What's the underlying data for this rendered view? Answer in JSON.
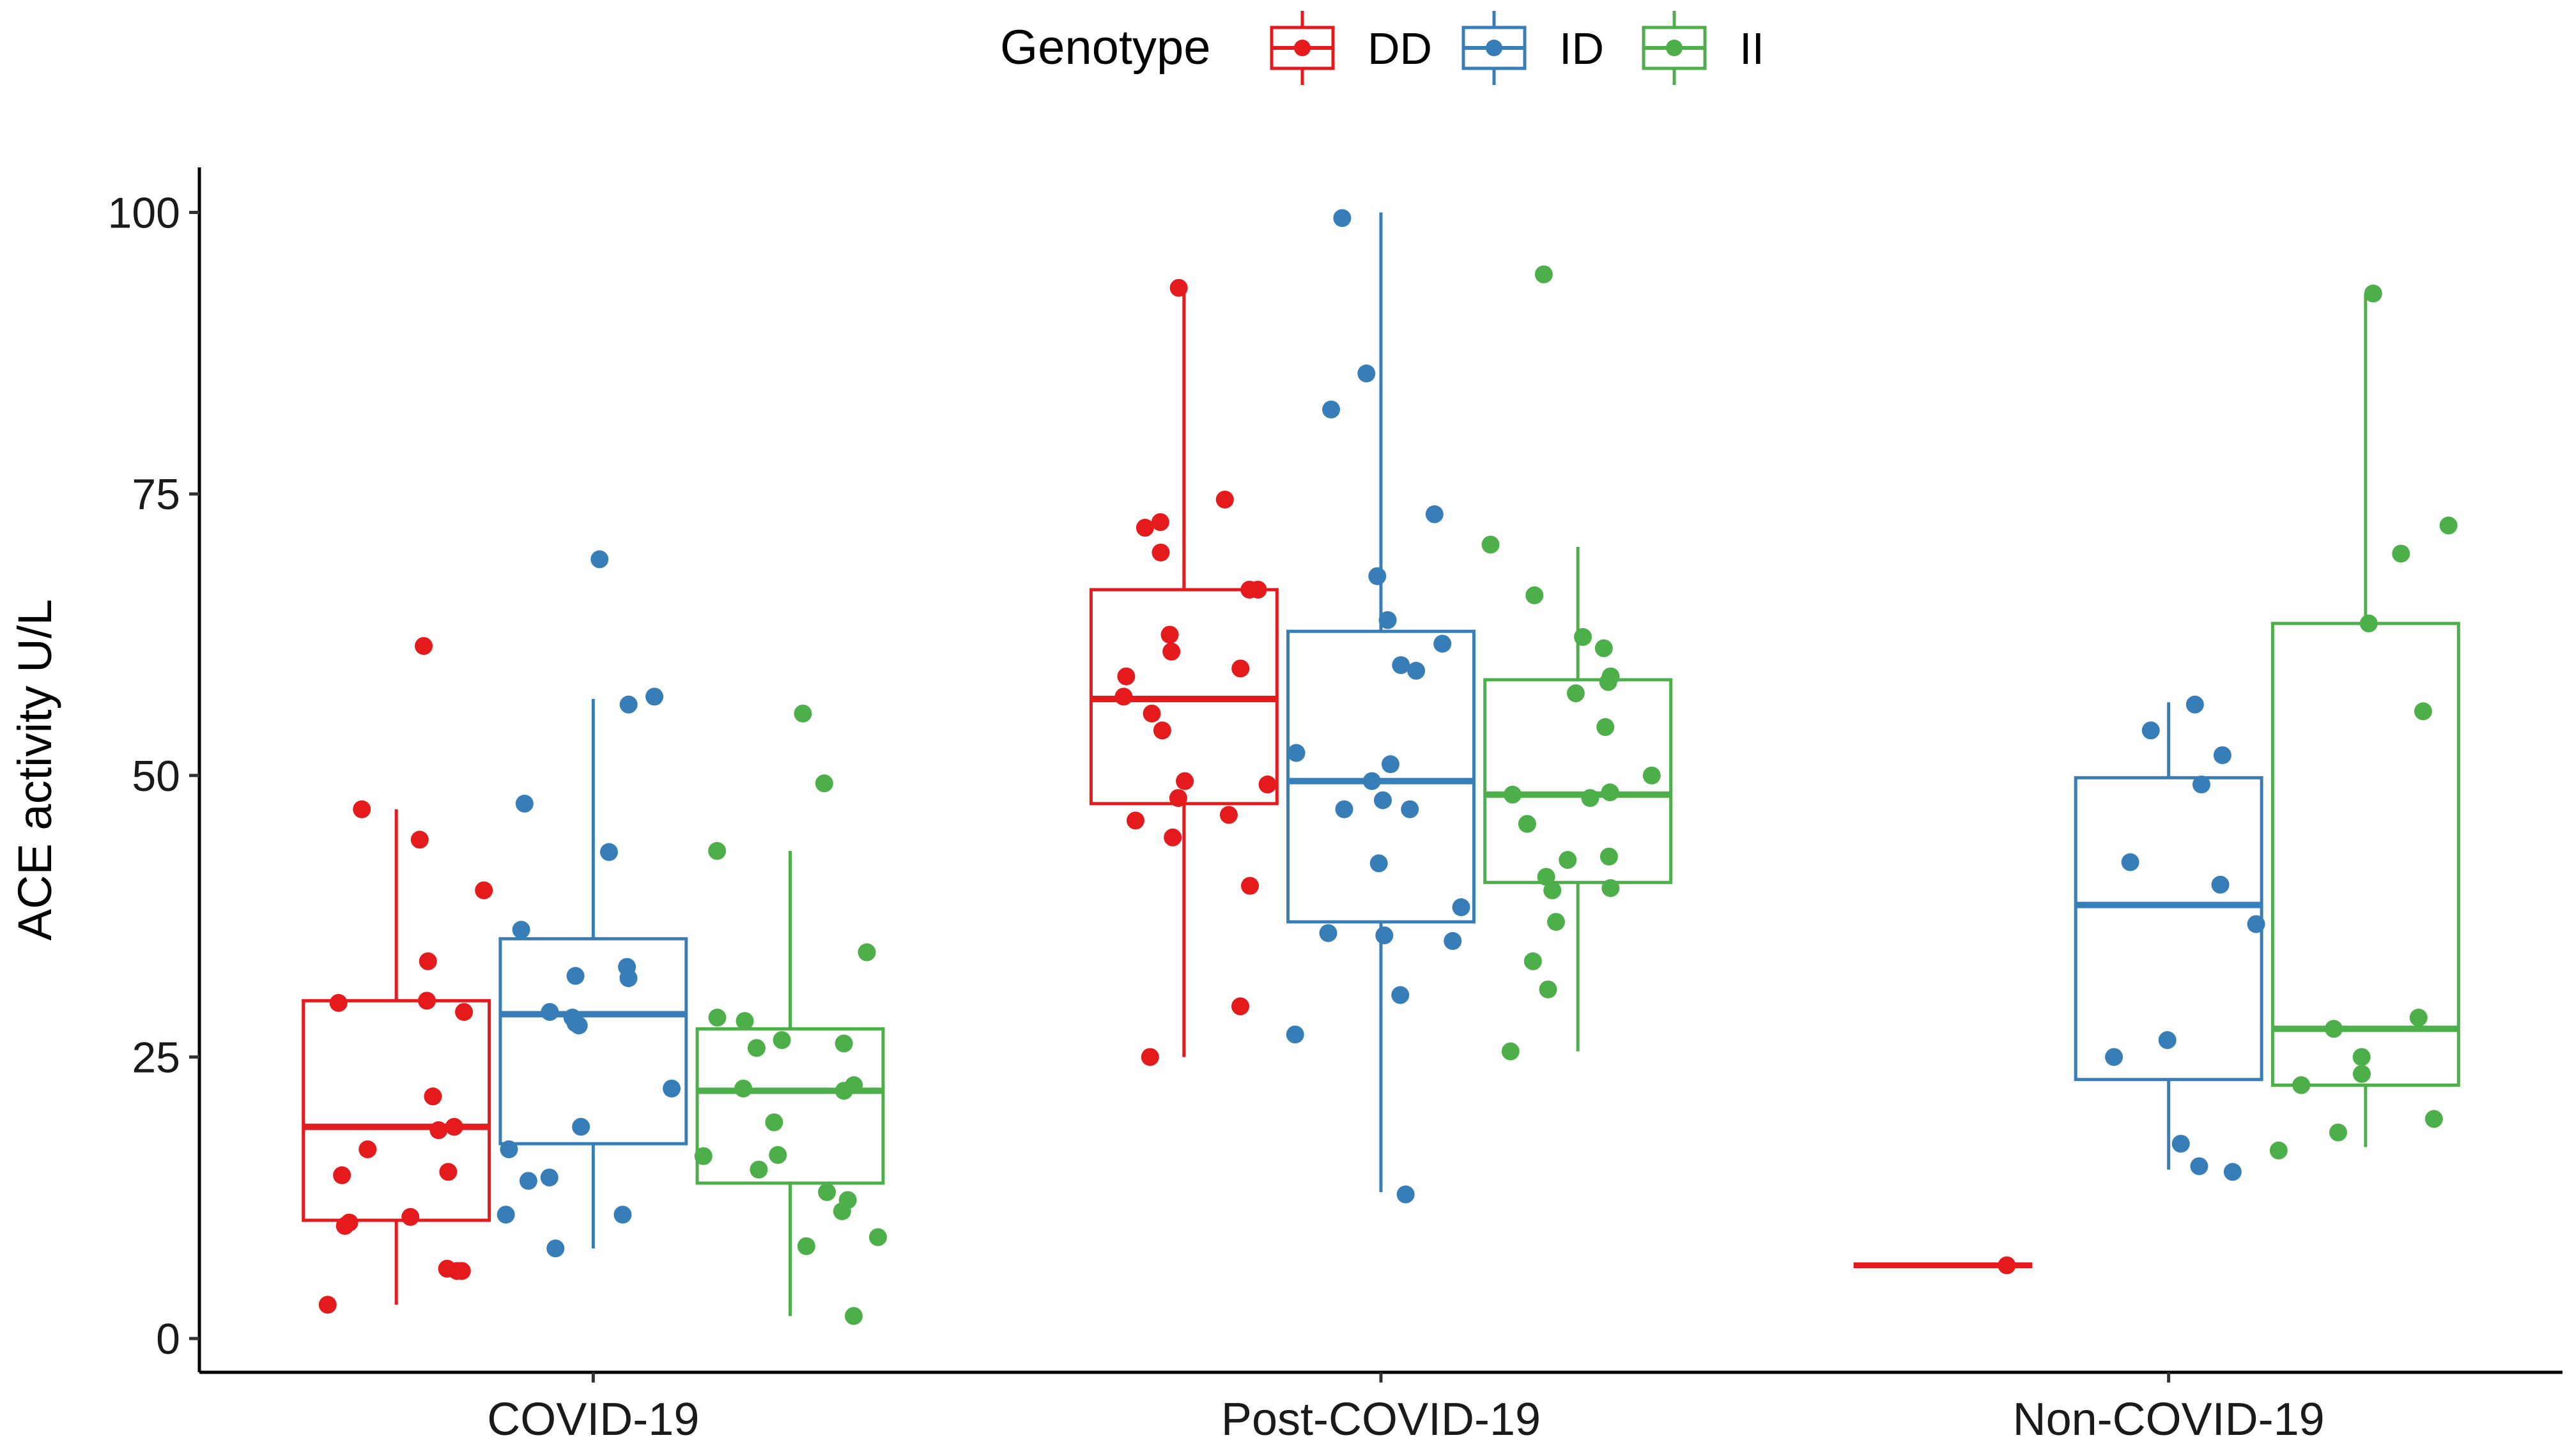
{
  "chart_data": {
    "type": "boxplot",
    "title": "",
    "xlabel": "",
    "ylabel": "ACE activity U/L",
    "ylim": [
      -3,
      104
    ],
    "yticks": [
      0,
      25,
      50,
      75,
      100
    ],
    "categories": [
      "COVID-19",
      "Post-COVID-19",
      "Non-COVID-19"
    ],
    "legend": {
      "title": "Genotype",
      "position": "top",
      "entries": [
        {
          "name": "DD",
          "color": "#E41A1C"
        },
        {
          "name": "ID",
          "color": "#377EB8"
        },
        {
          "name": "II",
          "color": "#4DAF4A"
        }
      ]
    },
    "series": [
      {
        "name": "DD",
        "color": "#E41A1C",
        "boxes": [
          {
            "category": "COVID-19",
            "min": 3,
            "q1": 10.5,
            "median": 18.8,
            "q3": 30,
            "max": 47,
            "points": [
              61.5,
              47,
              44.3,
              39.8,
              33.5,
              30,
              29.8,
              29,
              21.5,
              18.8,
              18.5,
              16.8,
              14.8,
              14.5,
              10.8,
              10.3,
              10,
              6.2,
              6,
              6,
              3
            ]
          },
          {
            "category": "Post-COVID-19",
            "min": 25,
            "q1": 47.5,
            "median": 56.8,
            "q3": 66.5,
            "max": 93,
            "points": [
              93.3,
              74.5,
              72.5,
              72,
              69.8,
              66.5,
              66.5,
              62.5,
              61,
              59.5,
              58.8,
              57,
              55.5,
              54,
              49.5,
              49.2,
              48,
              46.5,
              46,
              44.5,
              40.2,
              29.5,
              25
            ]
          },
          {
            "category": "Non-COVID-19",
            "min": 6.5,
            "q1": 6.5,
            "median": 6.5,
            "q3": 6.5,
            "max": 6.5,
            "points": [
              6.5
            ]
          }
        ]
      },
      {
        "name": "ID",
        "color": "#377EB8",
        "boxes": [
          {
            "category": "COVID-19",
            "min": 8,
            "q1": 17.3,
            "median": 28.8,
            "q3": 35.5,
            "max": 56.8,
            "points": [
              69.2,
              57,
              56.3,
              47.5,
              43.2,
              36.3,
              33,
              32.2,
              32,
              29,
              28.5,
              28,
              27.8,
              22.2,
              18.8,
              16.8,
              14.3,
              14,
              11,
              11,
              8
            ]
          },
          {
            "category": "Post-COVID-19",
            "min": 13,
            "q1": 37,
            "median": 49.5,
            "q3": 62.8,
            "max": 100,
            "points": [
              99.5,
              85.7,
              82.5,
              73.2,
              67.7,
              63.8,
              61.7,
              59.8,
              59.3,
              52,
              51,
              49.5,
              47.8,
              47,
              47,
              42.2,
              38.3,
              36,
              35.8,
              35.3,
              30.5,
              27,
              12.8
            ]
          },
          {
            "category": "Non-COVID-19",
            "min": 15,
            "q1": 23,
            "median": 38.5,
            "q3": 49.8,
            "max": 56.5,
            "points": [
              56.3,
              54,
              51.8,
              49.2,
              42.3,
              40.3,
              36.8,
              26.5,
              25,
              17.3,
              15.3,
              14.8
            ]
          }
        ]
      },
      {
        "name": "II",
        "color": "#4DAF4A",
        "boxes": [
          {
            "category": "COVID-19",
            "min": 2,
            "q1": 13.8,
            "median": 22,
            "q3": 27.5,
            "max": 43.3,
            "points": [
              55.5,
              49.3,
              43.3,
              34.3,
              28.5,
              28.2,
              26.5,
              26.2,
              25.8,
              22.5,
              22.2,
              22,
              19.2,
              16.3,
              16.2,
              15,
              13,
              12.3,
              11.3,
              9,
              8.2,
              2
            ]
          },
          {
            "category": "Post-COVID-19",
            "min": 25.5,
            "q1": 40.5,
            "median": 48.3,
            "q3": 58.5,
            "max": 70.3,
            "points": [
              94.5,
              70.5,
              66,
              62.3,
              61.3,
              58.8,
              58.3,
              57.3,
              54.3,
              50,
              48.5,
              48.3,
              48,
              45.7,
              42.8,
              42.5,
              41,
              40,
              39.8,
              37,
              33.5,
              31,
              25.5
            ]
          },
          {
            "category": "Non-COVID-19",
            "min": 17,
            "q1": 22.5,
            "median": 27.5,
            "q3": 63.5,
            "max": 92.8,
            "points": [
              92.8,
              72.2,
              69.7,
              63.5,
              55.7,
              28.5,
              27.5,
              25,
              23.5,
              22.5,
              19.5,
              18.3,
              16.7
            ]
          }
        ]
      }
    ]
  }
}
